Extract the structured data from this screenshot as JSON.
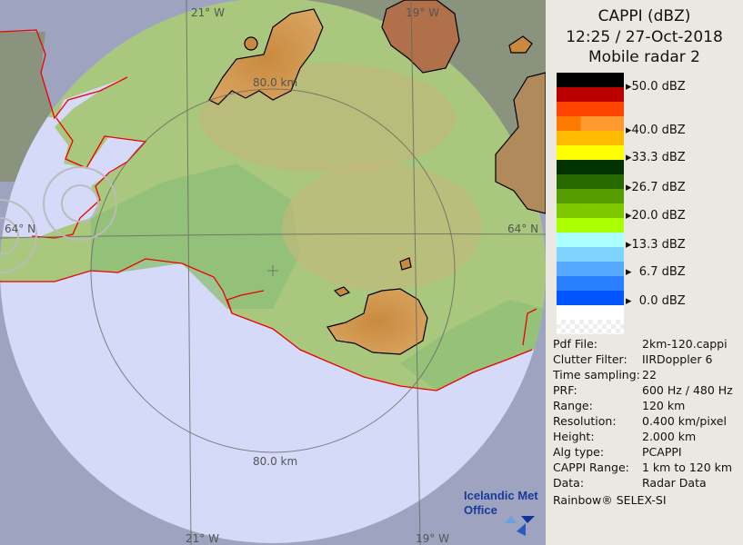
{
  "header": {
    "product": "CAPPI (dBZ)",
    "datetime": "12:25 / 27-Oct-2018",
    "radar": "Mobile radar 2"
  },
  "legend": {
    "swatches": [
      "#000000",
      "#bb0000",
      "#ff4400",
      "#ff7b00",
      "#ffbb00",
      "#ffff00",
      "#003300",
      "#276b00",
      "#559c00",
      "#7ec800",
      "#aaff00",
      "#aaffff",
      "#7fd4ff",
      "#55aaff",
      "#2a7fff",
      "#0055ff",
      "#ffffff",
      "#f2f2f2"
    ],
    "labels": [
      "50.0 dBZ",
      "40.0 dBZ",
      "33.3 dBZ",
      "26.7 dBZ",
      "20.0 dBZ",
      "13.3 dBZ",
      "6.7 dBZ",
      "0.0 dBZ"
    ]
  },
  "info": [
    {
      "k": "Pdf File:",
      "v": "2km-120.cappi"
    },
    {
      "k": "Clutter Filter:",
      "v": "IIRDoppler 6"
    },
    {
      "k": "Time sampling:",
      "v": "22"
    },
    {
      "k": "PRF:",
      "v": "600 Hz / 480 Hz"
    },
    {
      "k": "Range:",
      "v": "120 km"
    },
    {
      "k": "Resolution:",
      "v": "0.400 km/pixel"
    },
    {
      "k": "Height:",
      "v": "2.000 km"
    },
    {
      "k": "Alg type:",
      "v": "PCAPPI"
    },
    {
      "k": "CAPPI Range:",
      "v": "1 km to 120 km"
    },
    {
      "k": "Data:",
      "v": "Radar Data"
    }
  ],
  "footer": "Rainbow® SELEX-SI",
  "map": {
    "lon_labels": [
      "21° W",
      "19° W"
    ],
    "lat_label": "64° N",
    "ring_label": "80.0 km",
    "logo": "Icelandic Met Office",
    "logo_line1": "Icelandic Met",
    "logo_line2": "Office"
  }
}
